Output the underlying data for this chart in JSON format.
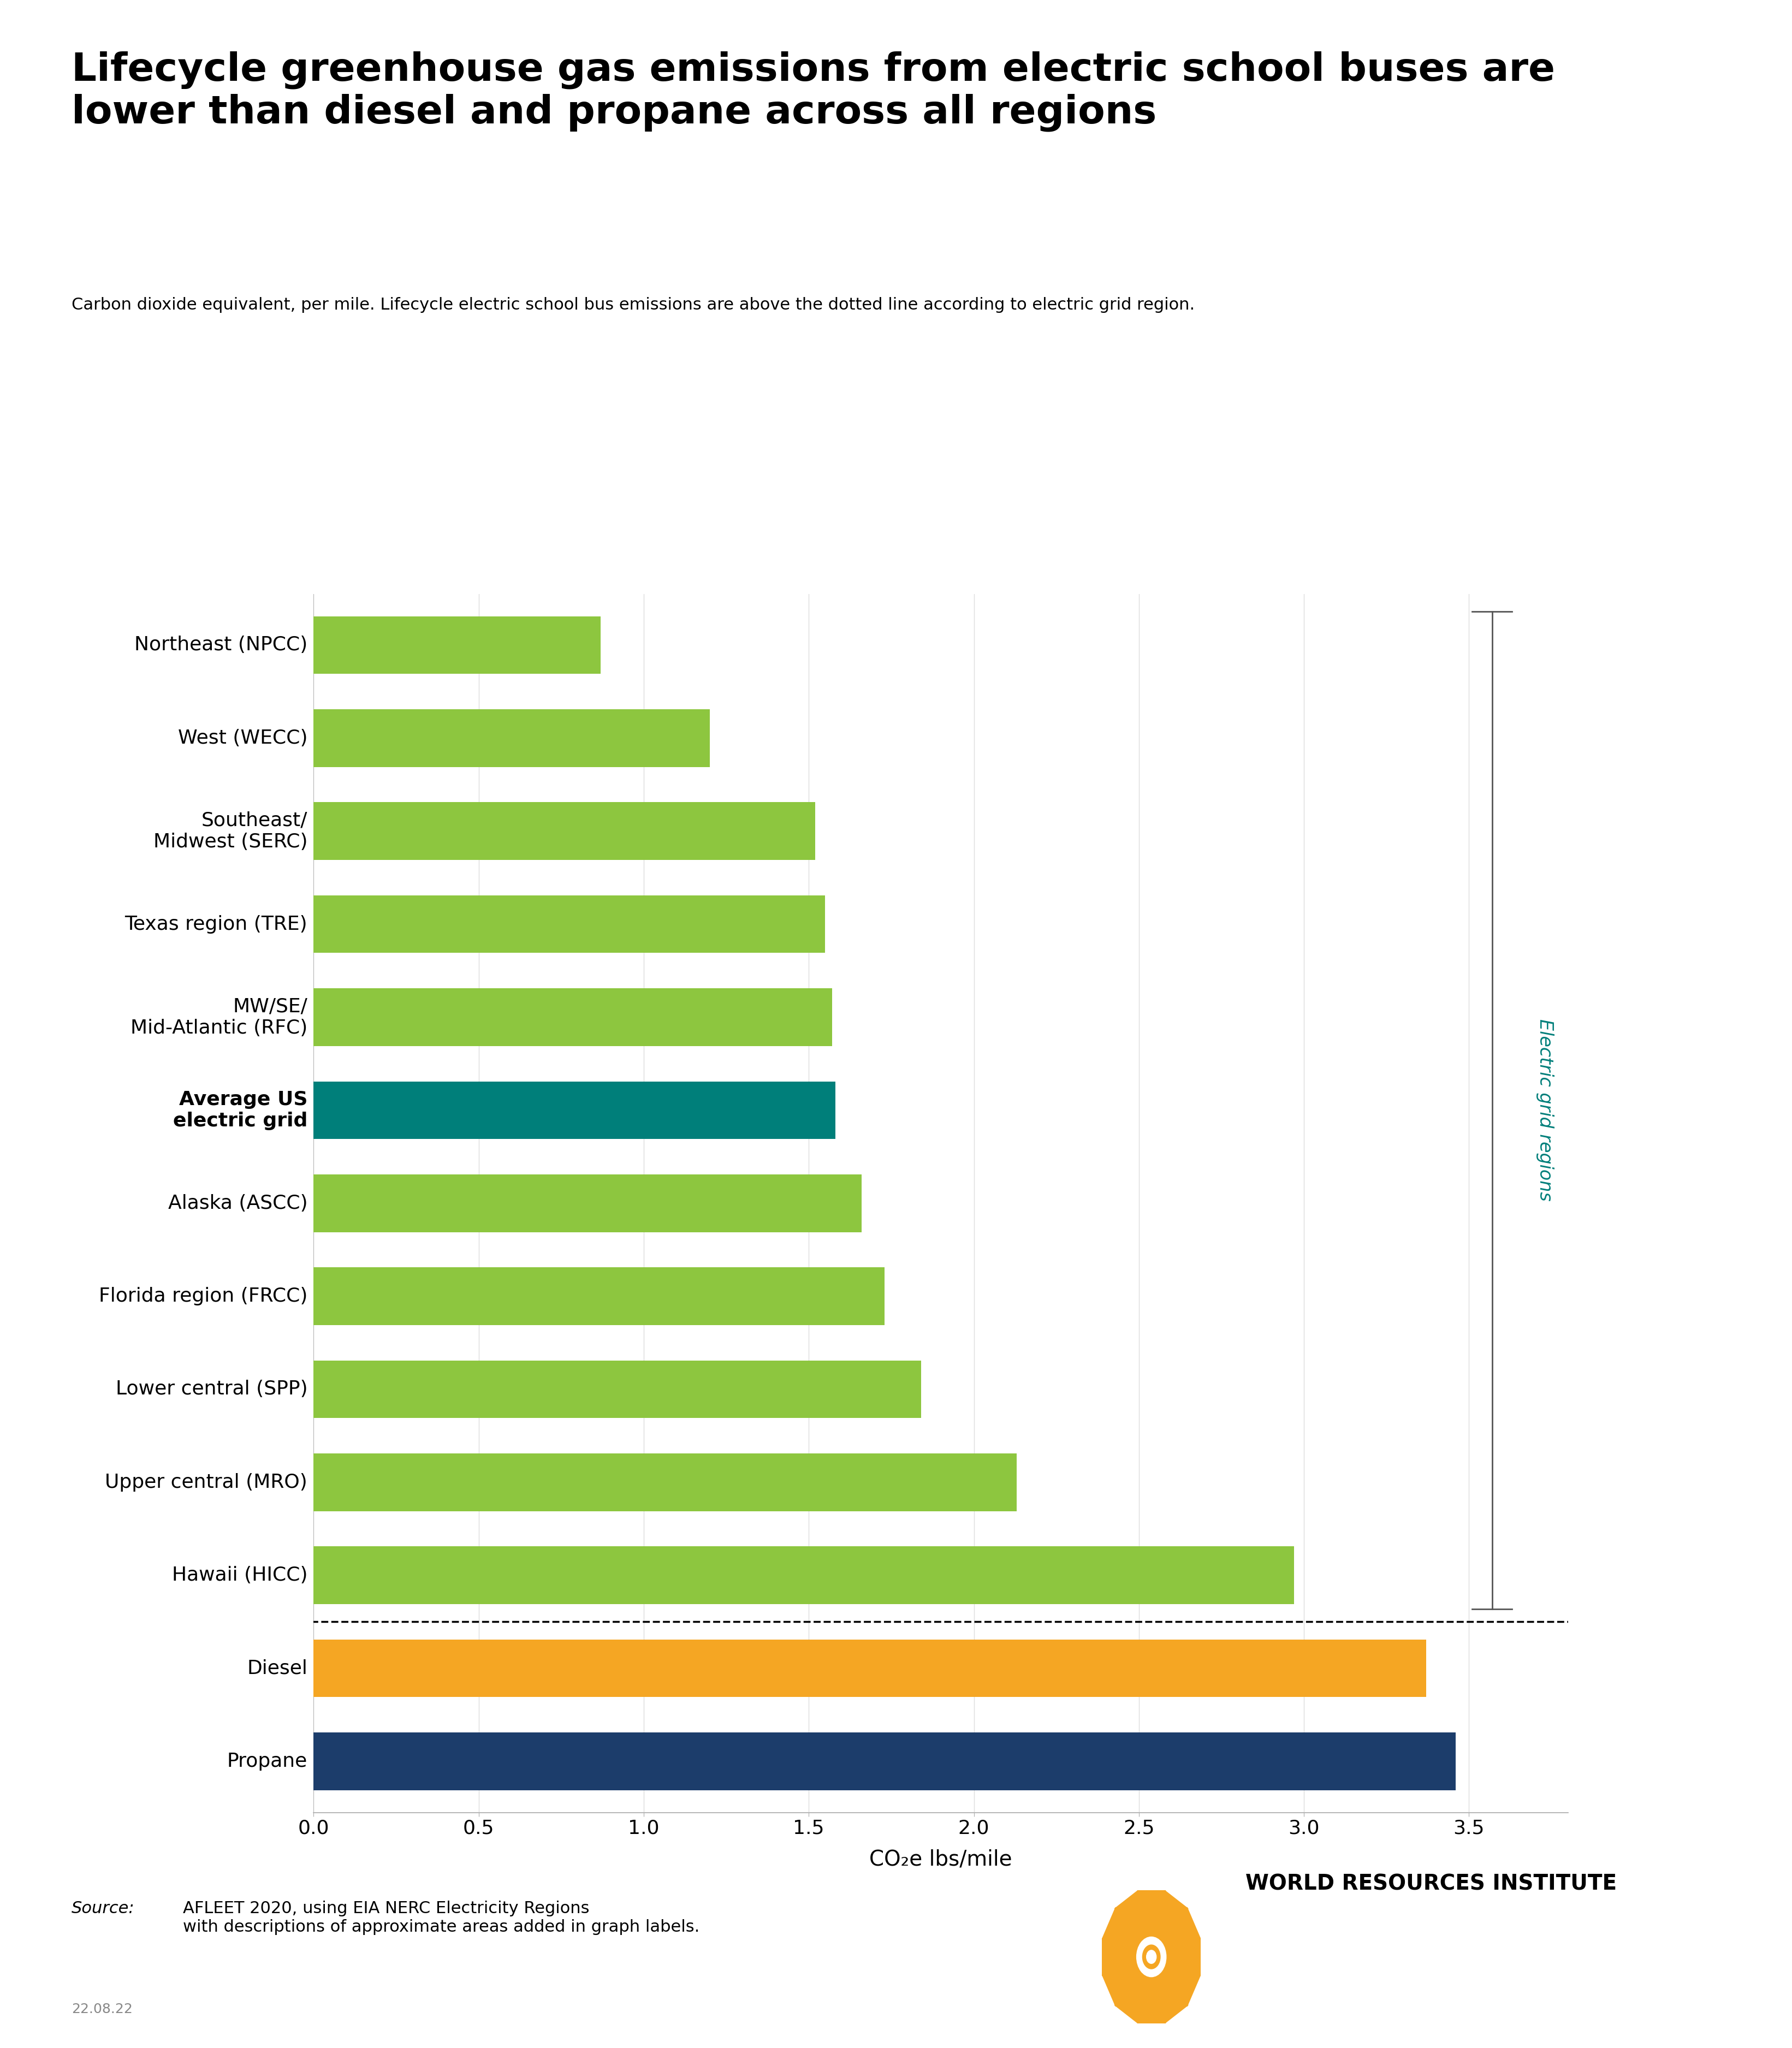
{
  "title_line1": "Lifecycle greenhouse gas emissions from electric school buses are",
  "title_line2": "lower than diesel and propane across all regions",
  "subtitle": "Carbon dioxide equivalent, per mile. Lifecycle electric school bus emissions are above the dotted line according to electric grid region.",
  "categories": [
    "Northeast (NPCC)",
    "West (WECC)",
    "Southeast/\nMidwest (SERC)",
    "Texas region (TRE)",
    "MW/SE/\nMid-Atlantic (RFC)",
    "Average US\nelectric grid",
    "Alaska (ASCC)",
    "Florida region (FRCC)",
    "Lower central (SPP)",
    "Upper central (MRO)",
    "Hawaii (HICC)",
    "Diesel",
    "Propane"
  ],
  "values": [
    0.87,
    1.2,
    1.52,
    1.55,
    1.57,
    1.58,
    1.66,
    1.73,
    1.84,
    2.13,
    2.97,
    3.37,
    3.46
  ],
  "bar_colors": [
    "#8dc63f",
    "#8dc63f",
    "#8dc63f",
    "#8dc63f",
    "#8dc63f",
    "#007f7a",
    "#8dc63f",
    "#8dc63f",
    "#8dc63f",
    "#8dc63f",
    "#8dc63f",
    "#f5a623",
    "#1c3d6b"
  ],
  "xlabel": "CO₂e lbs/mile",
  "xlim": [
    0,
    3.8
  ],
  "xticks": [
    0.0,
    0.5,
    1.0,
    1.5,
    2.0,
    2.5,
    3.0,
    3.5
  ],
  "background_color": "#ffffff",
  "electric_grid_color": "#007f7a",
  "source_italic": "Source:",
  "source_text": " AFLEET 2020, using EIA NERC Electricity Regions\nwith descriptions of approximate areas added in graph labels.",
  "date_text": "22.08.22",
  "wri_text": "WORLD RESOURCES INSTITUTE",
  "title_fontsize": 52,
  "subtitle_fontsize": 22,
  "label_fontsize": 26,
  "tick_fontsize": 26,
  "xlabel_fontsize": 28,
  "source_fontsize": 22,
  "date_fontsize": 18,
  "wri_fontsize": 28,
  "bracket_color": "#555555"
}
